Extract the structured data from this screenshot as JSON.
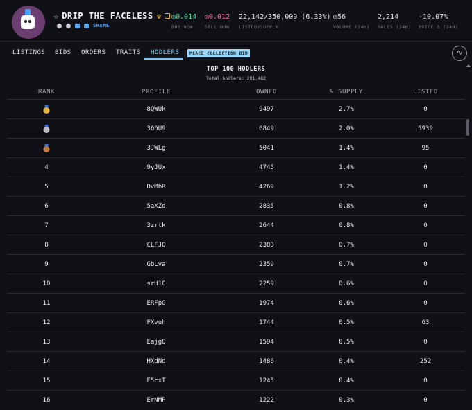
{
  "collection": {
    "name": "DRIP THE FACELESS",
    "share_label": "SHARE"
  },
  "stats": [
    {
      "value": "◎0.014",
      "label": "BUY NOW",
      "color": "#5ee6a8"
    },
    {
      "value": "◎0.012",
      "label": "SELL NOW",
      "color": "#f06fa0"
    },
    {
      "value": "22,142/350,009 (6.33%)",
      "label": "LISTED/SUPPLY",
      "color": "#e8e8ee"
    },
    {
      "value": "◎56",
      "label": "VOLUME (24H)",
      "color": "#e8e8ee"
    },
    {
      "value": "2,214",
      "label": "SALES (24H)",
      "color": "#e8e8ee"
    },
    {
      "value": "-10.07%",
      "label": "PRICE Δ (24H)",
      "color": "#e8e8ee"
    }
  ],
  "tabs": [
    {
      "label": "LISTINGS"
    },
    {
      "label": "BIDS"
    },
    {
      "label": "ORDERS"
    },
    {
      "label": "TRAITS"
    },
    {
      "label": "HODLERS",
      "active": true
    }
  ],
  "place_bid_label": "PLACE COLLECTION BID",
  "table": {
    "title": "TOP 100 HODLERS",
    "subtitle": "Total hodlers: 201,482",
    "headers": [
      "RANK",
      "PROFILE",
      "OWNED",
      "% SUPPLY",
      "LISTED"
    ],
    "rows": [
      {
        "rank": "",
        "medal": "gold",
        "profile": "8QWUk",
        "owned": "9497",
        "supply": "2.7%",
        "listed": "0"
      },
      {
        "rank": "",
        "medal": "silver",
        "profile": "366U9",
        "owned": "6849",
        "supply": "2.0%",
        "listed": "5939"
      },
      {
        "rank": "",
        "medal": "bronze",
        "profile": "3JWLg",
        "owned": "5041",
        "supply": "1.4%",
        "listed": "95"
      },
      {
        "rank": "4",
        "profile": "9yJUx",
        "owned": "4745",
        "supply": "1.4%",
        "listed": "0"
      },
      {
        "rank": "5",
        "profile": "DvMbR",
        "owned": "4269",
        "supply": "1.2%",
        "listed": "0"
      },
      {
        "rank": "6",
        "profile": "5aXZd",
        "owned": "2835",
        "supply": "0.8%",
        "listed": "0"
      },
      {
        "rank": "7",
        "profile": "3zrtk",
        "owned": "2644",
        "supply": "0.8%",
        "listed": "0"
      },
      {
        "rank": "8",
        "profile": "CLFJQ",
        "owned": "2383",
        "supply": "0.7%",
        "listed": "0"
      },
      {
        "rank": "9",
        "profile": "GbLva",
        "owned": "2359",
        "supply": "0.7%",
        "listed": "0"
      },
      {
        "rank": "10",
        "profile": "srH1C",
        "owned": "2259",
        "supply": "0.6%",
        "listed": "0"
      },
      {
        "rank": "11",
        "profile": "ERFpG",
        "owned": "1974",
        "supply": "0.6%",
        "listed": "0"
      },
      {
        "rank": "12",
        "profile": "FXvuh",
        "owned": "1744",
        "supply": "0.5%",
        "listed": "63"
      },
      {
        "rank": "13",
        "profile": "EajgQ",
        "owned": "1594",
        "supply": "0.5%",
        "listed": "0"
      },
      {
        "rank": "14",
        "profile": "HXdNd",
        "owned": "1486",
        "supply": "0.4%",
        "listed": "252"
      },
      {
        "rank": "15",
        "profile": "E5cxT",
        "owned": "1245",
        "supply": "0.4%",
        "listed": "0"
      },
      {
        "rank": "16",
        "profile": "ErNMP",
        "owned": "1222",
        "supply": "0.3%",
        "listed": "0"
      }
    ]
  },
  "medal_colors": {
    "gold": "#e8b63c",
    "silver": "#b9bcc4",
    "bronze": "#c47a3e"
  }
}
